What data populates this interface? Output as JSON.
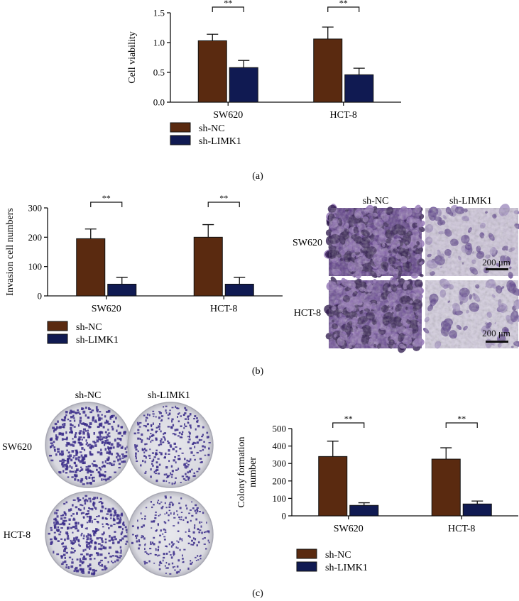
{
  "colors": {
    "sh_nc": "#5a2a10",
    "sh_limk1": "#101a52",
    "axis": "#111111",
    "stain_dark": "#3a1d63",
    "stain_light": "#c9bfd8",
    "plate_bg": "#dcdce4",
    "colony": "#3b2d8a"
  },
  "panel_labels": {
    "a": "(a)",
    "b": "(b)",
    "c": "(c)"
  },
  "sig_marker": "**",
  "micrograph": {
    "col_labels": [
      "sh-NC",
      "sh-LIMK1"
    ],
    "row_labels": [
      "SW620",
      "HCT-8"
    ],
    "scale_bar": "200 μm"
  },
  "plates": {
    "col_labels": [
      "sh-NC",
      "sh-LIMK1"
    ],
    "row_labels": [
      "SW620",
      "HCT-8"
    ]
  },
  "chart_data": [
    {
      "id": "a",
      "type": "bar",
      "categories": [
        "SW620",
        "HCT-8"
      ],
      "series": [
        {
          "name": "sh-NC",
          "values": [
            1.03,
            1.06
          ],
          "errors": [
            0.11,
            0.2
          ]
        },
        {
          "name": "sh-LIMK1",
          "values": [
            0.58,
            0.46
          ],
          "errors": [
            0.12,
            0.11
          ]
        }
      ],
      "ylabel": "Cell viability",
      "ylim": [
        0,
        1.5
      ],
      "yticks": [
        0,
        0.5,
        1,
        1.5
      ],
      "ytick_labels": [
        "0.0",
        "0.5",
        "1.0",
        "1.5"
      ],
      "significance": [
        "**",
        "**"
      ],
      "legend_position": "bottom-left"
    },
    {
      "id": "b",
      "type": "bar",
      "categories": [
        "SW620",
        "HCT-8"
      ],
      "series": [
        {
          "name": "sh-NC",
          "values": [
            195,
            200
          ],
          "errors": [
            33,
            43
          ]
        },
        {
          "name": "sh-LIMK1",
          "values": [
            40,
            40
          ],
          "errors": [
            23,
            23
          ]
        }
      ],
      "ylabel": "Invasion cell numbers",
      "ylim": [
        0,
        300
      ],
      "yticks": [
        0,
        100,
        200,
        300
      ],
      "ytick_labels": [
        "0",
        "100",
        "200",
        "300"
      ],
      "significance": [
        "**",
        "**"
      ],
      "legend_position": "bottom-left"
    },
    {
      "id": "c",
      "type": "bar",
      "categories": [
        "SW620",
        "HCT-8"
      ],
      "series": [
        {
          "name": "sh-NC",
          "values": [
            340,
            325
          ],
          "errors": [
            88,
            65
          ]
        },
        {
          "name": "sh-LIMK1",
          "values": [
            60,
            68
          ],
          "errors": [
            15,
            17
          ]
        }
      ],
      "ylabel": "Colony formation number",
      "ylabel_lines": [
        "Colony formation",
        "number"
      ],
      "ylim": [
        0,
        500
      ],
      "yticks": [
        0,
        100,
        200,
        300,
        400,
        500
      ],
      "ytick_labels": [
        "0",
        "100",
        "200",
        "300",
        "400",
        "500"
      ],
      "significance": [
        "**",
        "**"
      ],
      "legend_position": "bottom-left"
    }
  ]
}
